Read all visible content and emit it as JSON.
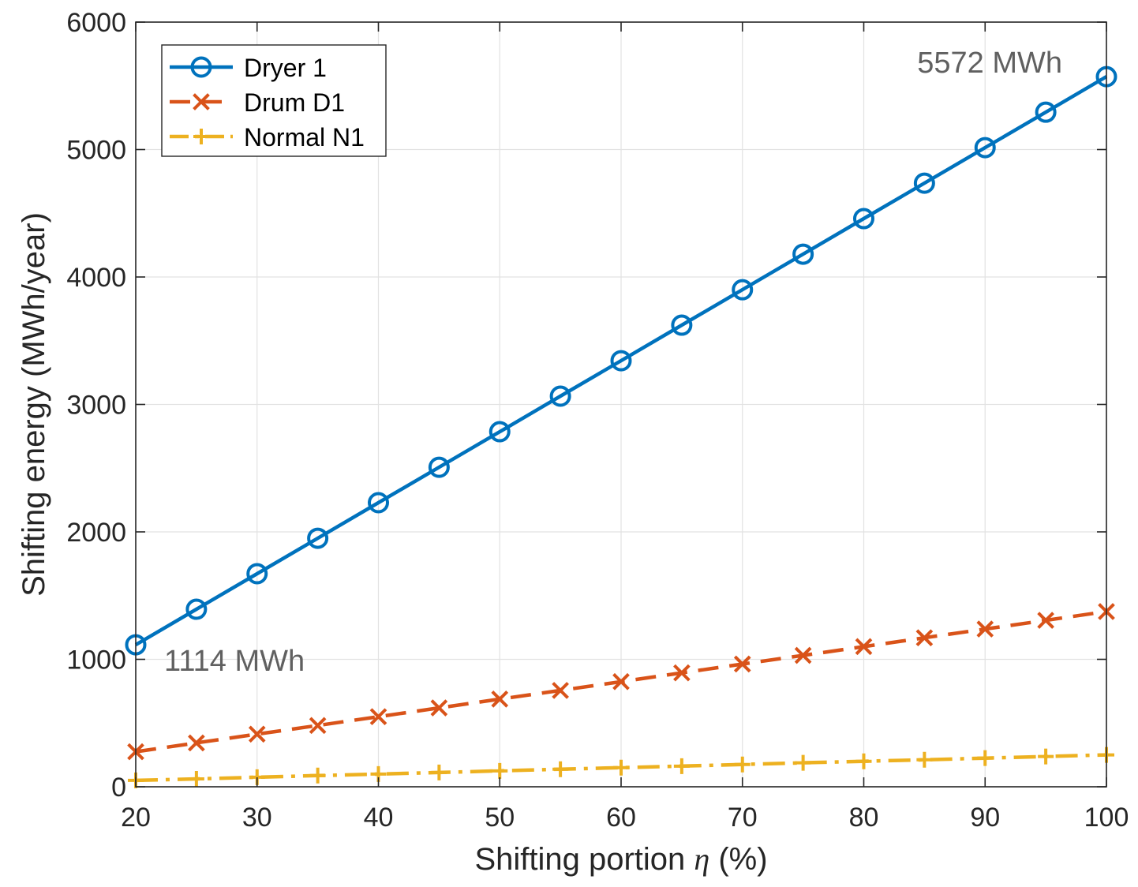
{
  "chart_data": {
    "type": "line",
    "xlabel_main": "Shifting portion ",
    "xlabel_symbol": "η",
    "xlabel_unit": " (%)",
    "ylabel": "Shifting energy (MWh/year)",
    "xlim": [
      20,
      100
    ],
    "ylim": [
      0,
      6000
    ],
    "xticks": [
      20,
      30,
      40,
      50,
      60,
      70,
      80,
      90,
      100
    ],
    "yticks": [
      0,
      1000,
      2000,
      3000,
      4000,
      5000,
      6000
    ],
    "grid": true,
    "legend_position": "top-left",
    "x": [
      20,
      25,
      30,
      35,
      40,
      45,
      50,
      55,
      60,
      65,
      70,
      75,
      80,
      85,
      90,
      95,
      100
    ],
    "series": [
      {
        "name": "Dryer 1",
        "color": "#0072BD",
        "line_style": "solid",
        "marker": "circle",
        "values": [
          1114,
          1393,
          1672,
          1950,
          2229,
          2507,
          2786,
          3065,
          3343,
          3622,
          3900,
          4179,
          4458,
          4736,
          5015,
          5293,
          5572
        ]
      },
      {
        "name": "Drum D1",
        "color": "#D95319",
        "line_style": "dashed",
        "marker": "x",
        "values": [
          275,
          344,
          413,
          481,
          550,
          619,
          688,
          756,
          825,
          894,
          963,
          1031,
          1100,
          1169,
          1238,
          1306,
          1375
        ]
      },
      {
        "name": "Normal N1",
        "color": "#EDB120",
        "line_style": "dashdot",
        "marker": "plus",
        "values": [
          50,
          62,
          75,
          88,
          100,
          112,
          125,
          138,
          150,
          162,
          175,
          188,
          200,
          212,
          225,
          238,
          250
        ]
      }
    ],
    "annotations": [
      {
        "text": "5572 MWh"
      },
      {
        "text": "1114 MWh"
      }
    ]
  }
}
